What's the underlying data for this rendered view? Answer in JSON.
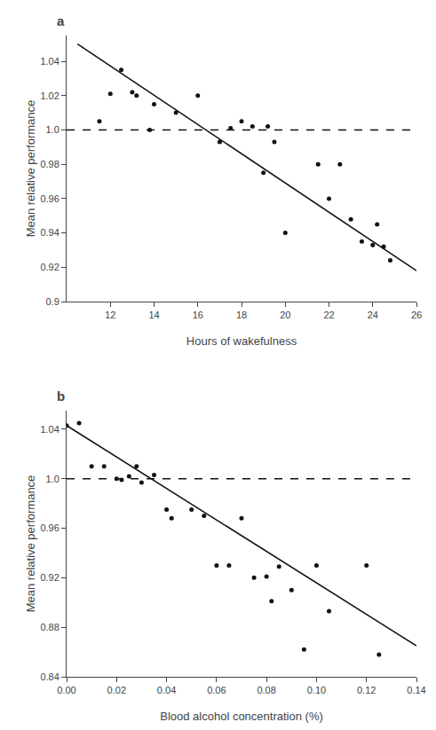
{
  "chart_data": [
    {
      "type": "scatter",
      "title": "a",
      "xlabel": "Hours of wakefulness",
      "ylabel": "Mean relative performance",
      "xlim": [
        10,
        26
      ],
      "ylim": [
        0.9,
        1.055
      ],
      "xticks": [
        12,
        14,
        16,
        18,
        20,
        22,
        24,
        26
      ],
      "yticks": [
        0.9,
        0.92,
        0.94,
        0.96,
        0.98,
        {
          "value": 1.0,
          "label": "1.0"
        },
        1.02,
        1.04
      ],
      "grid": false,
      "series": [
        {
          "type": "scatter",
          "color": "#111111",
          "marker": "circle",
          "x": [
            11.5,
            12.0,
            12.5,
            13.0,
            13.2,
            13.8,
            14.0,
            15.0,
            16.0,
            17.0,
            17.5,
            18.0,
            18.5,
            19.0,
            19.2,
            19.5,
            20.0,
            21.5,
            22.0,
            22.5,
            23.0,
            23.5,
            24.0,
            24.2,
            24.5,
            24.8
          ],
          "values": [
            1.005,
            1.021,
            1.035,
            1.022,
            1.02,
            1.0,
            1.015,
            1.01,
            1.02,
            0.993,
            1.001,
            1.005,
            1.002,
            0.975,
            1.002,
            0.993,
            0.94,
            0.98,
            0.96,
            0.98,
            0.948,
            0.935,
            0.933,
            0.945,
            0.932,
            0.924
          ]
        },
        {
          "type": "line",
          "color": "#111111",
          "line_style": "solid",
          "x": [
            10.5,
            26.0
          ],
          "values": [
            1.05,
            0.918
          ]
        },
        {
          "type": "line",
          "color": "#111111",
          "line_style": "dashed",
          "x": [
            10,
            26
          ],
          "values": [
            1.0,
            1.0
          ]
        }
      ]
    },
    {
      "type": "scatter",
      "title": "b",
      "xlabel": "Blood alcohol concentration (%)",
      "ylabel": "Mean relative performance",
      "xlim": [
        0.0,
        0.14
      ],
      "ylim": [
        0.84,
        1.055
      ],
      "xticks": [
        {
          "value": 0.0,
          "label": "0.00"
        },
        0.02,
        0.04,
        0.06,
        0.08,
        {
          "value": 0.1,
          "label": "0.10"
        },
        0.12,
        0.14
      ],
      "yticks": [
        0.84,
        0.88,
        0.92,
        0.96,
        {
          "value": 1.0,
          "label": "1.0"
        },
        1.04
      ],
      "grid": false,
      "series": [
        {
          "type": "scatter",
          "color": "#111111",
          "marker": "circle",
          "x": [
            0.0,
            0.005,
            0.01,
            0.015,
            0.02,
            0.022,
            0.025,
            0.028,
            0.03,
            0.035,
            0.04,
            0.042,
            0.05,
            0.055,
            0.06,
            0.065,
            0.07,
            0.075,
            0.08,
            0.082,
            0.085,
            0.09,
            0.095,
            0.1,
            0.105,
            0.12,
            0.125
          ],
          "values": [
            1.043,
            1.045,
            1.01,
            1.01,
            1.0,
            0.999,
            1.002,
            1.01,
            0.997,
            1.003,
            0.975,
            0.968,
            0.975,
            0.97,
            0.93,
            0.93,
            0.968,
            0.92,
            0.921,
            0.901,
            0.929,
            0.91,
            0.862,
            0.93,
            0.893,
            0.93,
            0.858
          ]
        },
        {
          "type": "line",
          "color": "#111111",
          "line_style": "solid",
          "x": [
            0.0,
            0.14
          ],
          "values": [
            1.043,
            0.865
          ]
        },
        {
          "type": "line",
          "color": "#111111",
          "line_style": "dashed",
          "x": [
            0.0,
            0.14
          ],
          "values": [
            1.0,
            1.0
          ]
        }
      ]
    }
  ]
}
